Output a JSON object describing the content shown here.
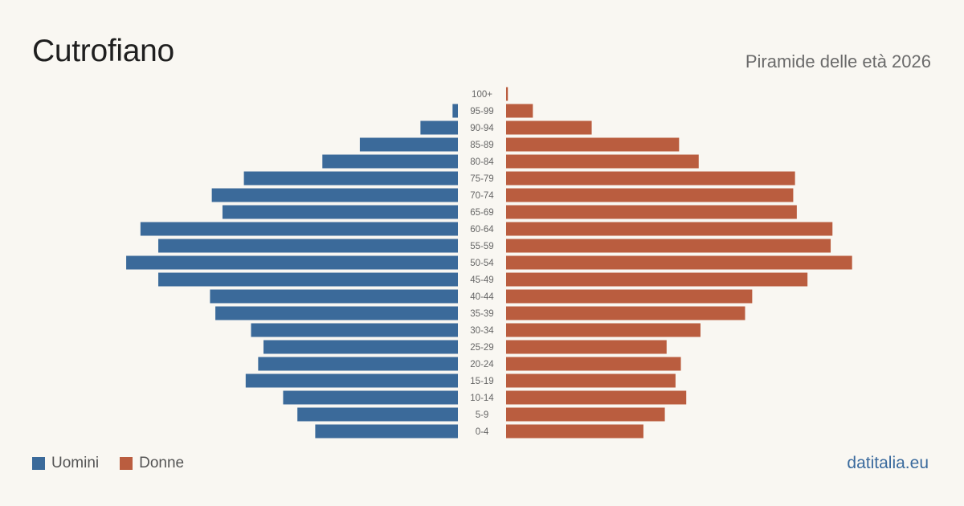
{
  "title": "Cutrofiano",
  "subtitle": "Piramide delle età 2026",
  "brand": "datitalia.eu",
  "colors": {
    "men": "#3b6a9a",
    "women": "#ba5d3f",
    "background": "#f9f7f2"
  },
  "legend": {
    "men_label": "Uomini",
    "women_label": "Donne"
  },
  "chart_data": {
    "type": "bar",
    "orientation": "horizontal-pyramid",
    "categories": [
      "100+",
      "95-99",
      "90-94",
      "85-89",
      "80-84",
      "75-79",
      "70-74",
      "65-69",
      "60-64",
      "55-59",
      "50-54",
      "45-49",
      "40-44",
      "35-39",
      "30-34",
      "25-29",
      "20-24",
      "15-19",
      "10-14",
      "5-9",
      "0-4"
    ],
    "series": [
      {
        "name": "Uomini",
        "values": [
          0,
          3,
          21,
          55,
          76,
          120,
          138,
          132,
          178,
          168,
          186,
          168,
          139,
          136,
          116,
          109,
          112,
          119,
          98,
          90,
          80
        ]
      },
      {
        "name": "Donne",
        "values": [
          1,
          15,
          48,
          97,
          108,
          162,
          161,
          163,
          183,
          182,
          194,
          169,
          138,
          134,
          109,
          90,
          98,
          95,
          101,
          89,
          77
        ]
      }
    ],
    "legend_position": "bottom-left",
    "grid": false
  }
}
